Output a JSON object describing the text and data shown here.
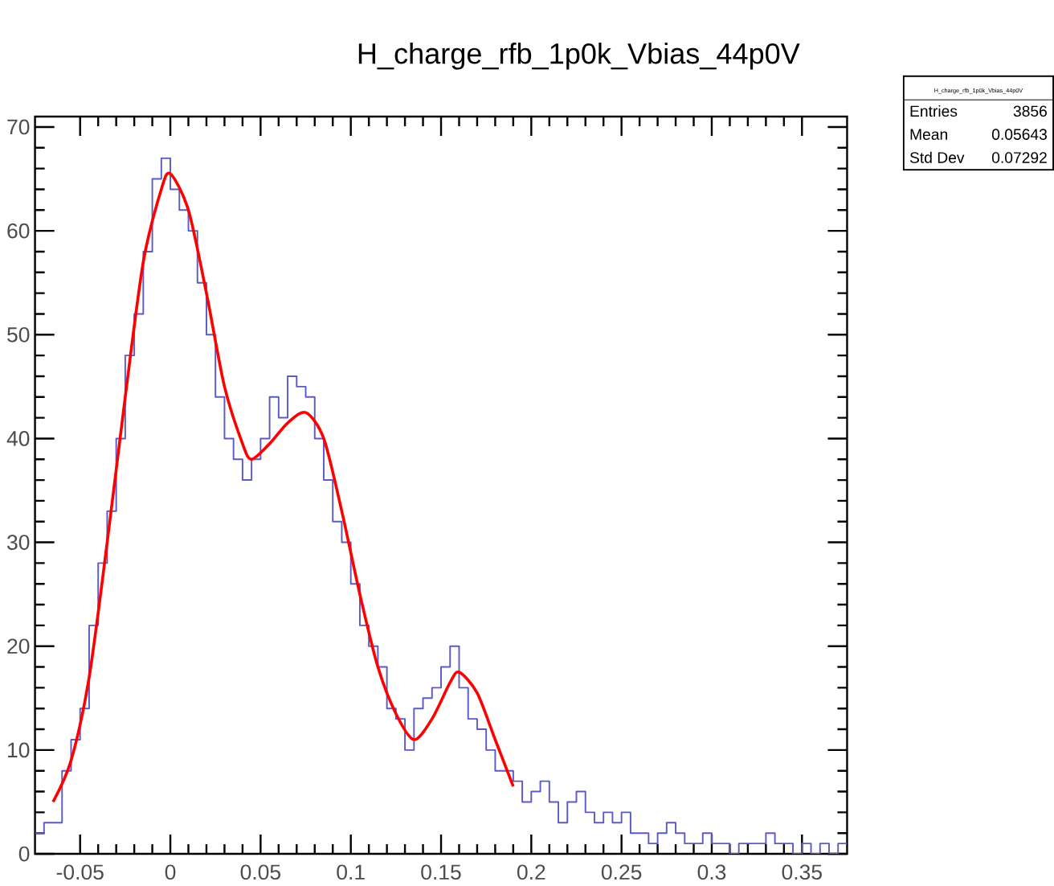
{
  "chart_data": {
    "type": "histogram",
    "title": "H_charge_rfb_1p0k_Vbias_44p0V",
    "bins": [
      -0.075,
      -0.07,
      -0.065,
      -0.06,
      -0.055,
      -0.05,
      -0.045,
      -0.04,
      -0.035,
      -0.03,
      -0.025,
      -0.02,
      -0.015,
      -0.01,
      -0.005,
      0,
      0.005,
      0.01,
      0.015,
      0.02,
      0.025,
      0.03,
      0.035,
      0.04,
      0.045,
      0.05,
      0.055,
      0.06,
      0.065,
      0.07,
      0.075,
      0.08,
      0.085,
      0.09,
      0.095,
      0.1,
      0.105,
      0.11,
      0.115,
      0.12,
      0.125,
      0.13,
      0.135,
      0.14,
      0.145,
      0.15,
      0.155,
      0.16,
      0.165,
      0.17,
      0.175,
      0.18,
      0.185,
      0.19,
      0.195,
      0.2,
      0.205,
      0.21,
      0.215,
      0.22,
      0.225,
      0.23,
      0.235,
      0.24,
      0.245,
      0.25,
      0.255,
      0.26,
      0.265,
      0.27,
      0.275,
      0.28,
      0.285,
      0.29,
      0.295,
      0.3,
      0.305,
      0.31,
      0.315,
      0.32,
      0.325,
      0.33,
      0.335,
      0.34,
      0.345,
      0.35,
      0.355,
      0.36,
      0.365,
      0.37,
      0.375
    ],
    "values": [
      2,
      3,
      3,
      8,
      11,
      14,
      22,
      28,
      33,
      40,
      48,
      52,
      58,
      65,
      67,
      64,
      62,
      60,
      55,
      50,
      44,
      40,
      38,
      36,
      38,
      40,
      44,
      42,
      46,
      45,
      44,
      40,
      36,
      32,
      30,
      26,
      22,
      20,
      18,
      14,
      13,
      10,
      14,
      15,
      16,
      18,
      20,
      16,
      13,
      12,
      10,
      8,
      8,
      7,
      5,
      6,
      7,
      5,
      3,
      5,
      6,
      4,
      3,
      4,
      3,
      4,
      2,
      2,
      1,
      2,
      3,
      2,
      1,
      1,
      2,
      1,
      1,
      0,
      1,
      1,
      1,
      2,
      1,
      1,
      0,
      1,
      0,
      1,
      0,
      1
    ],
    "color": "#5a5ac8",
    "series": [
      {
        "type": "line",
        "color": "#ff0000",
        "x": [
          -0.065,
          -0.055,
          -0.045,
          -0.035,
          -0.025,
          -0.015,
          -0.005,
          0,
          0.01,
          0.02,
          0.03,
          0.04,
          0.045,
          0.055,
          0.065,
          0.075,
          0.085,
          0.095,
          0.105,
          0.115,
          0.125,
          0.135,
          0.145,
          0.155,
          0.16,
          0.17,
          0.18,
          0.19
        ],
        "values": [
          5,
          9,
          17,
          30,
          44,
          57,
          64,
          65.5,
          62,
          54,
          45,
          39.5,
          38,
          39.5,
          41.5,
          42.5,
          40,
          33,
          25,
          18,
          13.5,
          11,
          13,
          16.5,
          17.5,
          15.5,
          11,
          6.5
        ]
      }
    ],
    "xlim": [
      -0.075,
      0.375
    ],
    "ylim": [
      0,
      71
    ],
    "xticks": [
      -0.05,
      0,
      0.05,
      0.1,
      0.15,
      0.2,
      0.25,
      0.3,
      0.35
    ],
    "yticks": [
      0,
      10,
      20,
      30,
      40,
      50,
      60,
      70
    ],
    "annotations": [
      "H_charge_rfb_1p0k_Vbias_44p0V",
      "Entries",
      "3856",
      "Mean",
      "0.05643",
      "Std Dev",
      "0.07292"
    ]
  }
}
